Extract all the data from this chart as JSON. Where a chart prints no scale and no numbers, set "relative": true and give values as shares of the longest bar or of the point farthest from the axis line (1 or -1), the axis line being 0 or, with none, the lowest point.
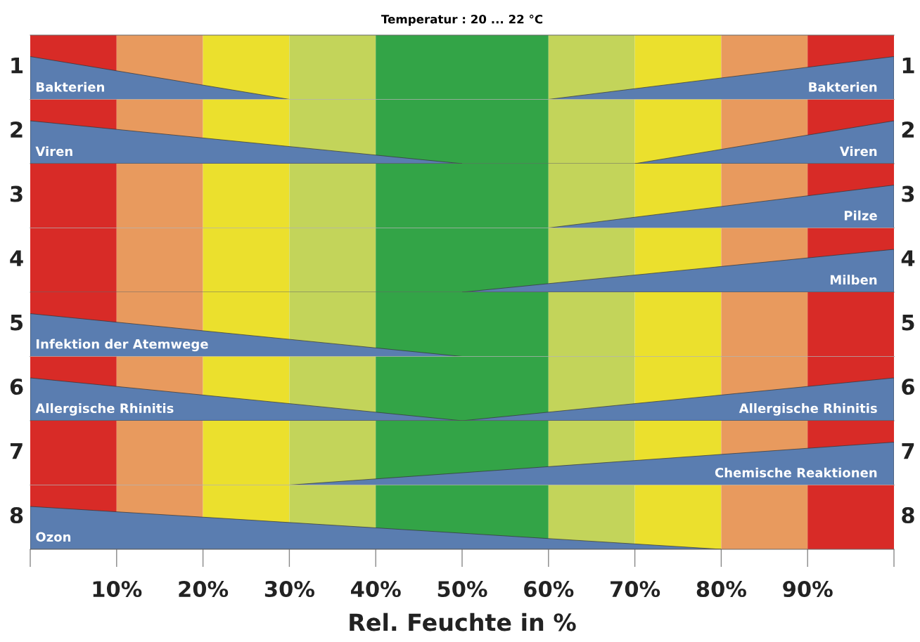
{
  "chart_data": [
    {
      "type": "area",
      "title": "Temperatur : 20 ... 22 °C",
      "ylabel": "1",
      "y2label": "1",
      "relative": true,
      "xlim": [
        0,
        100
      ],
      "tick_labels": false,
      "bands": [
        {
          "axis": "x",
          "from": 0,
          "to": 10,
          "color": "#d82b27"
        },
        {
          "axis": "x",
          "from": 10,
          "to": 20,
          "color": "#e89a5e"
        },
        {
          "axis": "x",
          "from": 20,
          "to": 30,
          "color": "#ebe02d"
        },
        {
          "axis": "x",
          "from": 30,
          "to": 40,
          "color": "#c3d45a"
        },
        {
          "axis": "x",
          "from": 40,
          "to": 60,
          "color": "#33a447"
        },
        {
          "axis": "x",
          "from": 60,
          "to": 70,
          "color": "#c3d45a"
        },
        {
          "axis": "x",
          "from": 70,
          "to": 80,
          "color": "#ebe02d"
        },
        {
          "axis": "x",
          "from": 80,
          "to": 90,
          "color": "#e89a5e"
        },
        {
          "axis": "x",
          "from": 90,
          "to": 100,
          "color": "#d82b27"
        }
      ],
      "series": [
        {
          "name": "Bakterien",
          "color": "#5a7db0",
          "x": [
            0,
            30
          ],
          "values": [
            1,
            0
          ]
        },
        {
          "name": "Bakterien",
          "color": "#5a7db0",
          "x": [
            60,
            100
          ],
          "values": [
            0,
            1
          ]
        }
      ]
    },
    {
      "type": "area",
      "ylabel": "2",
      "y2label": "2",
      "relative": true,
      "xlim": [
        0,
        100
      ],
      "tick_labels": false,
      "bands": [
        {
          "axis": "x",
          "from": 0,
          "to": 10,
          "color": "#d82b27"
        },
        {
          "axis": "x",
          "from": 10,
          "to": 20,
          "color": "#e89a5e"
        },
        {
          "axis": "x",
          "from": 20,
          "to": 30,
          "color": "#ebe02d"
        },
        {
          "axis": "x",
          "from": 30,
          "to": 40,
          "color": "#c3d45a"
        },
        {
          "axis": "x",
          "from": 40,
          "to": 60,
          "color": "#33a447"
        },
        {
          "axis": "x",
          "from": 60,
          "to": 70,
          "color": "#c3d45a"
        },
        {
          "axis": "x",
          "from": 70,
          "to": 80,
          "color": "#ebe02d"
        },
        {
          "axis": "x",
          "from": 80,
          "to": 90,
          "color": "#e89a5e"
        },
        {
          "axis": "x",
          "from": 90,
          "to": 100,
          "color": "#d82b27"
        }
      ],
      "series": [
        {
          "name": "Viren",
          "color": "#5a7db0",
          "x": [
            0,
            50
          ],
          "values": [
            1,
            0
          ]
        },
        {
          "name": "Viren",
          "color": "#5a7db0",
          "x": [
            70,
            100
          ],
          "values": [
            0,
            1
          ]
        }
      ]
    },
    {
      "type": "area",
      "ylabel": "3",
      "y2label": "3",
      "relative": true,
      "xlim": [
        0,
        100
      ],
      "tick_labels": false,
      "bands": [
        {
          "axis": "x",
          "from": 0,
          "to": 10,
          "color": "#d82b27"
        },
        {
          "axis": "x",
          "from": 10,
          "to": 20,
          "color": "#e89a5e"
        },
        {
          "axis": "x",
          "from": 20,
          "to": 30,
          "color": "#ebe02d"
        },
        {
          "axis": "x",
          "from": 30,
          "to": 40,
          "color": "#c3d45a"
        },
        {
          "axis": "x",
          "from": 40,
          "to": 60,
          "color": "#33a447"
        },
        {
          "axis": "x",
          "from": 60,
          "to": 70,
          "color": "#c3d45a"
        },
        {
          "axis": "x",
          "from": 70,
          "to": 80,
          "color": "#ebe02d"
        },
        {
          "axis": "x",
          "from": 80,
          "to": 90,
          "color": "#e89a5e"
        },
        {
          "axis": "x",
          "from": 90,
          "to": 100,
          "color": "#d82b27"
        }
      ],
      "series": [
        {
          "name": "Pilze",
          "color": "#5a7db0",
          "x": [
            60,
            100
          ],
          "values": [
            0,
            1
          ]
        }
      ]
    },
    {
      "type": "area",
      "ylabel": "4",
      "y2label": "4",
      "relative": true,
      "xlim": [
        0,
        100
      ],
      "tick_labels": false,
      "bands": [
        {
          "axis": "x",
          "from": 0,
          "to": 10,
          "color": "#d82b27"
        },
        {
          "axis": "x",
          "from": 10,
          "to": 20,
          "color": "#e89a5e"
        },
        {
          "axis": "x",
          "from": 20,
          "to": 30,
          "color": "#ebe02d"
        },
        {
          "axis": "x",
          "from": 30,
          "to": 40,
          "color": "#c3d45a"
        },
        {
          "axis": "x",
          "from": 40,
          "to": 60,
          "color": "#33a447"
        },
        {
          "axis": "x",
          "from": 60,
          "to": 70,
          "color": "#c3d45a"
        },
        {
          "axis": "x",
          "from": 70,
          "to": 80,
          "color": "#ebe02d"
        },
        {
          "axis": "x",
          "from": 80,
          "to": 90,
          "color": "#e89a5e"
        },
        {
          "axis": "x",
          "from": 90,
          "to": 100,
          "color": "#d82b27"
        }
      ],
      "series": [
        {
          "name": "Milben",
          "color": "#5a7db0",
          "x": [
            50,
            100
          ],
          "values": [
            0,
            1
          ]
        }
      ]
    },
    {
      "type": "area",
      "ylabel": "5",
      "y2label": "5",
      "relative": true,
      "xlim": [
        0,
        100
      ],
      "tick_labels": false,
      "bands": [
        {
          "axis": "x",
          "from": 0,
          "to": 10,
          "color": "#d82b27"
        },
        {
          "axis": "x",
          "from": 10,
          "to": 20,
          "color": "#e89a5e"
        },
        {
          "axis": "x",
          "from": 20,
          "to": 30,
          "color": "#ebe02d"
        },
        {
          "axis": "x",
          "from": 30,
          "to": 40,
          "color": "#c3d45a"
        },
        {
          "axis": "x",
          "from": 40,
          "to": 60,
          "color": "#33a447"
        },
        {
          "axis": "x",
          "from": 60,
          "to": 70,
          "color": "#c3d45a"
        },
        {
          "axis": "x",
          "from": 70,
          "to": 80,
          "color": "#ebe02d"
        },
        {
          "axis": "x",
          "from": 80,
          "to": 90,
          "color": "#e89a5e"
        },
        {
          "axis": "x",
          "from": 90,
          "to": 100,
          "color": "#d82b27"
        }
      ],
      "series": [
        {
          "name": "Infektion der Atemwege",
          "color": "#5a7db0",
          "x": [
            0,
            50
          ],
          "values": [
            1,
            0
          ]
        }
      ]
    },
    {
      "type": "area",
      "ylabel": "6",
      "y2label": "6",
      "relative": true,
      "xlim": [
        0,
        100
      ],
      "tick_labels": false,
      "bands": [
        {
          "axis": "x",
          "from": 0,
          "to": 10,
          "color": "#d82b27"
        },
        {
          "axis": "x",
          "from": 10,
          "to": 20,
          "color": "#e89a5e"
        },
        {
          "axis": "x",
          "from": 20,
          "to": 30,
          "color": "#ebe02d"
        },
        {
          "axis": "x",
          "from": 30,
          "to": 40,
          "color": "#c3d45a"
        },
        {
          "axis": "x",
          "from": 40,
          "to": 60,
          "color": "#33a447"
        },
        {
          "axis": "x",
          "from": 60,
          "to": 70,
          "color": "#c3d45a"
        },
        {
          "axis": "x",
          "from": 70,
          "to": 80,
          "color": "#ebe02d"
        },
        {
          "axis": "x",
          "from": 80,
          "to": 90,
          "color": "#e89a5e"
        },
        {
          "axis": "x",
          "from": 90,
          "to": 100,
          "color": "#d82b27"
        }
      ],
      "series": [
        {
          "name": "Allergische Rhinitis",
          "color": "#5a7db0",
          "x": [
            0,
            50
          ],
          "values": [
            1,
            0
          ]
        },
        {
          "name": "Allergische Rhinitis",
          "color": "#5a7db0",
          "x": [
            50,
            100
          ],
          "values": [
            0,
            1
          ]
        }
      ]
    },
    {
      "type": "area",
      "ylabel": "7",
      "y2label": "7",
      "relative": true,
      "xlim": [
        0,
        100
      ],
      "tick_labels": false,
      "bands": [
        {
          "axis": "x",
          "from": 0,
          "to": 10,
          "color": "#d82b27"
        },
        {
          "axis": "x",
          "from": 10,
          "to": 20,
          "color": "#e89a5e"
        },
        {
          "axis": "x",
          "from": 20,
          "to": 30,
          "color": "#ebe02d"
        },
        {
          "axis": "x",
          "from": 30,
          "to": 40,
          "color": "#c3d45a"
        },
        {
          "axis": "x",
          "from": 40,
          "to": 60,
          "color": "#33a447"
        },
        {
          "axis": "x",
          "from": 60,
          "to": 70,
          "color": "#c3d45a"
        },
        {
          "axis": "x",
          "from": 70,
          "to": 80,
          "color": "#ebe02d"
        },
        {
          "axis": "x",
          "from": 80,
          "to": 90,
          "color": "#e89a5e"
        },
        {
          "axis": "x",
          "from": 90,
          "to": 100,
          "color": "#d82b27"
        }
      ],
      "series": [
        {
          "name": "Chemische Reaktionen",
          "color": "#5a7db0",
          "x": [
            30,
            100
          ],
          "values": [
            0,
            1
          ]
        }
      ]
    },
    {
      "type": "area",
      "ylabel": "8",
      "y2label": "8",
      "xlabel": "Rel. Feuchte in %",
      "relative": true,
      "xlim": [
        0,
        100
      ],
      "tick_labels": "x",
      "xticks": [
        {
          "value": 0,
          "label": null
        },
        {
          "value": 10,
          "label": "10%"
        },
        {
          "value": 20,
          "label": "20%"
        },
        {
          "value": 30,
          "label": "30%"
        },
        {
          "value": 40,
          "label": "40%"
        },
        {
          "value": 50,
          "label": "50%"
        },
        {
          "value": 60,
          "label": "60%"
        },
        {
          "value": 70,
          "label": "70%"
        },
        {
          "value": 80,
          "label": "80%"
        },
        {
          "value": 90,
          "label": "90%"
        },
        {
          "value": 100,
          "label": null
        }
      ],
      "bands": [
        {
          "axis": "x",
          "from": 0,
          "to": 10,
          "color": "#d82b27"
        },
        {
          "axis": "x",
          "from": 10,
          "to": 20,
          "color": "#e89a5e"
        },
        {
          "axis": "x",
          "from": 20,
          "to": 30,
          "color": "#ebe02d"
        },
        {
          "axis": "x",
          "from": 30,
          "to": 40,
          "color": "#c3d45a"
        },
        {
          "axis": "x",
          "from": 40,
          "to": 60,
          "color": "#33a447"
        },
        {
          "axis": "x",
          "from": 60,
          "to": 70,
          "color": "#c3d45a"
        },
        {
          "axis": "x",
          "from": 70,
          "to": 80,
          "color": "#ebe02d"
        },
        {
          "axis": "x",
          "from": 80,
          "to": 90,
          "color": "#e89a5e"
        },
        {
          "axis": "x",
          "from": 90,
          "to": 100,
          "color": "#d82b27"
        }
      ],
      "series": [
        {
          "name": "Ozon",
          "color": "#5a7db0",
          "x": [
            0,
            80
          ],
          "values": [
            1,
            0
          ]
        }
      ]
    }
  ]
}
